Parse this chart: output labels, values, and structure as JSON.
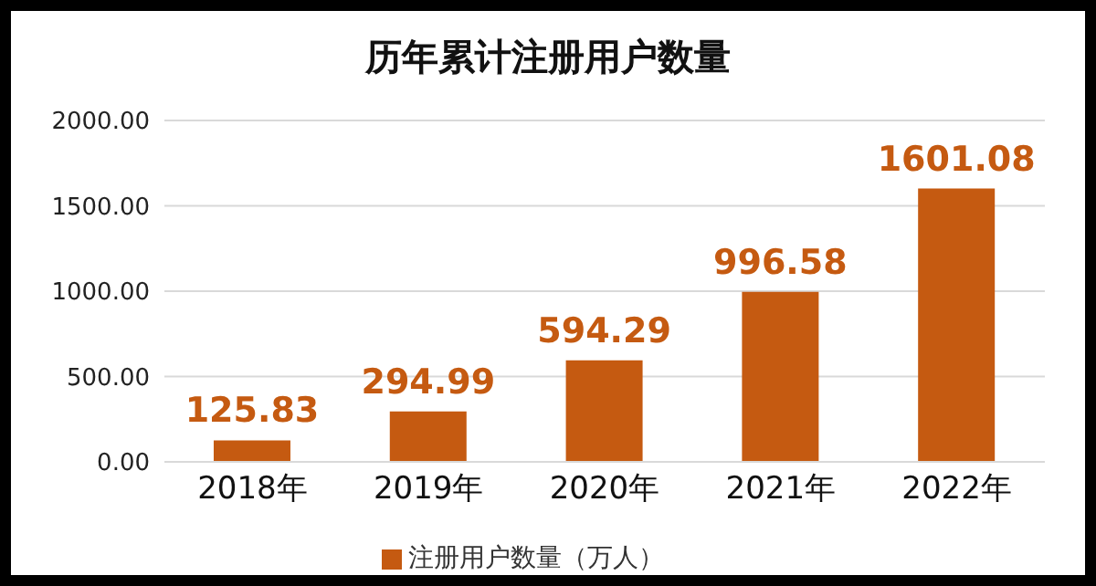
{
  "chart_data": {
    "type": "bar",
    "title": "历年累计注册用户数量",
    "categories": [
      "2018年",
      "2019年",
      "2020年",
      "2021年",
      "2022年"
    ],
    "series": [
      {
        "name": "注册用户数量（万人）",
        "color": "#c55a11",
        "values": [
          125.83,
          294.99,
          594.29,
          996.58,
          1601.08
        ]
      }
    ],
    "ylim": [
      0,
      2000
    ],
    "yticks": [
      {
        "value": 0,
        "label": "0.00"
      },
      {
        "value": 500,
        "label": "500.00"
      },
      {
        "value": 1000,
        "label": "1000.00"
      },
      {
        "value": 1500,
        "label": "1500.00"
      },
      {
        "value": 2000,
        "label": "2000.00"
      }
    ],
    "grid": "y",
    "legend": "bottom",
    "data_labels": true
  }
}
